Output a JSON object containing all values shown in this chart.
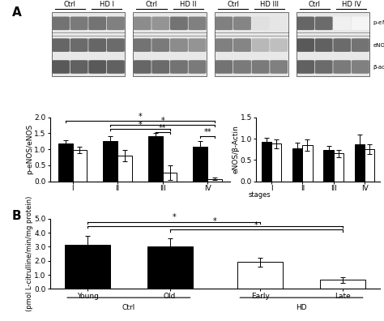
{
  "panel_A_left": {
    "stages": [
      "I",
      "II",
      "III",
      "IV"
    ],
    "ctrl_values": [
      1.17,
      1.27,
      1.42,
      1.08
    ],
    "ctrl_errors": [
      0.12,
      0.15,
      0.1,
      0.18
    ],
    "hd_values": [
      0.98,
      0.8,
      0.27,
      0.07
    ],
    "hd_errors": [
      0.1,
      0.18,
      0.22,
      0.04
    ],
    "ylabel": "p-eNOS/eNOS",
    "ylim": [
      0,
      2.0
    ],
    "yticks": [
      0.0,
      0.5,
      1.0,
      1.5,
      2.0
    ]
  },
  "panel_A_right": {
    "stages": [
      "I",
      "II",
      "III",
      "IV"
    ],
    "ctrl_values": [
      0.93,
      0.78,
      0.73,
      0.87
    ],
    "ctrl_errors": [
      0.08,
      0.12,
      0.1,
      0.22
    ],
    "hd_values": [
      0.88,
      0.85,
      0.65,
      0.75
    ],
    "hd_errors": [
      0.1,
      0.13,
      0.08,
      0.12
    ],
    "ylabel": "eNOS/β-Actin",
    "ylim": [
      0,
      1.5
    ],
    "yticks": [
      0.0,
      0.5,
      1.0,
      1.5
    ]
  },
  "panel_B": {
    "groups": [
      "Young",
      "Old",
      "Early",
      "Late"
    ],
    "colors": [
      "#000000",
      "#000000",
      "#ffffff",
      "#ffffff"
    ],
    "values": [
      3.15,
      3.0,
      1.9,
      0.65
    ],
    "errors": [
      0.65,
      0.6,
      0.3,
      0.2
    ],
    "ylabel": "(pmol L-citrulline/min/mg protein)",
    "ylim": [
      0,
      5.0
    ],
    "yticks": [
      0.0,
      1.0,
      2.0,
      3.0,
      4.0,
      5.0
    ]
  },
  "blot_label_A": "A",
  "blot_label_B": "B",
  "bar_width": 0.32,
  "ctrl_color": "#000000",
  "hd_color": "#ffffff",
  "edgecolor": "#000000",
  "fontsize": 6.5,
  "title_fontsize": 9,
  "blot_panels": [
    {
      "headers": [
        "Ctrl",
        "HD I"
      ],
      "rows": [
        [
          [
            0.55,
            0.52,
            0.55,
            0.5
          ],
          "medium"
        ],
        [
          [
            0.6,
            0.58,
            0.6,
            0.58
          ],
          "medium"
        ],
        [
          [
            0.65,
            0.62,
            0.65,
            0.62
          ],
          "medium"
        ]
      ]
    },
    {
      "headers": [
        "Ctrl",
        "HD II"
      ],
      "rows": [
        [
          [
            0.45,
            0.42,
            0.55,
            0.5
          ],
          "medium"
        ],
        [
          [
            0.55,
            0.52,
            0.45,
            0.42
          ],
          "medium"
        ],
        [
          [
            0.6,
            0.58,
            0.55,
            0.52
          ],
          "medium"
        ]
      ]
    },
    {
      "headers": [
        "Ctrl",
        "HD III"
      ],
      "rows": [
        [
          [
            0.5,
            0.48,
            0.12,
            0.1
          ],
          "medium"
        ],
        [
          [
            0.5,
            0.48,
            0.28,
            0.25
          ],
          "medium"
        ],
        [
          [
            0.55,
            0.52,
            0.52,
            0.5
          ],
          "medium"
        ]
      ]
    },
    {
      "headers": [
        "Ctrl",
        "HD IV"
      ],
      "rows": [
        [
          [
            0.6,
            0.58,
            0.06,
            0.04
          ],
          "medium"
        ],
        [
          [
            0.65,
            0.62,
            0.58,
            0.55
          ],
          "medium"
        ],
        [
          [
            0.62,
            0.58,
            0.52,
            0.5
          ],
          "medium"
        ]
      ]
    }
  ]
}
